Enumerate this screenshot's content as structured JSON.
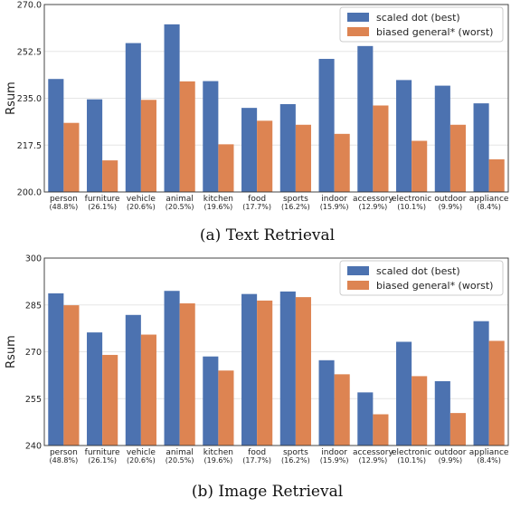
{
  "colors": {
    "best": "#4c72b0",
    "worst": "#dd8452"
  },
  "chart_data": [
    {
      "type": "bar",
      "caption": "(a) Text Retrieval",
      "ylabel": "Rsum",
      "ylim": [
        200.0,
        270.0
      ],
      "yticks": [
        "200.0",
        "217.5",
        "235.0",
        "252.5",
        "270.0"
      ],
      "ytick_values": [
        200.0,
        217.5,
        235.0,
        252.5,
        270.0
      ],
      "categories": [
        "person",
        "furniture",
        "vehicle",
        "animal",
        "kitchen",
        "food",
        "sports",
        "indoor",
        "accessory",
        "electronic",
        "outdoor",
        "appliance"
      ],
      "category_pcts": [
        "(48.8%)",
        "(26.1%)",
        "(20.6%)",
        "(20.5%)",
        "(19.6%)",
        "(17.7%)",
        "(16.2%)",
        "(15.9%)",
        "(12.9%)",
        "(10.1%)",
        "(9.9%)",
        "(8.4%)"
      ],
      "legend_position": "top-right",
      "series": [
        {
          "name": "scaled dot (best)",
          "color": "#4c72b0",
          "values": [
            242.2,
            234.6,
            255.6,
            262.6,
            241.4,
            231.4,
            232.8,
            249.7,
            254.5,
            241.8,
            239.7,
            233.1
          ]
        },
        {
          "name": "biased general* (worst)",
          "color": "#dd8452",
          "values": [
            225.8,
            211.8,
            234.4,
            241.3,
            217.8,
            226.6,
            225.1,
            221.7,
            232.3,
            219.1,
            225.1,
            212.2
          ]
        }
      ]
    },
    {
      "type": "bar",
      "caption": "(b) Image Retrieval",
      "ylabel": "Rsum",
      "ylim": [
        240,
        300
      ],
      "yticks": [
        "240",
        "255",
        "270",
        "285",
        "300"
      ],
      "ytick_values": [
        240,
        255,
        270,
        285,
        300
      ],
      "categories": [
        "person",
        "furniture",
        "vehicle",
        "animal",
        "kitchen",
        "food",
        "sports",
        "indoor",
        "accessory",
        "electronic",
        "outdoor",
        "appliance"
      ],
      "category_pcts": [
        "(48.8%)",
        "(26.1%)",
        "(20.6%)",
        "(20.5%)",
        "(19.6%)",
        "(17.7%)",
        "(16.2%)",
        "(15.9%)",
        "(12.9%)",
        "(10.1%)",
        "(9.9%)",
        "(8.4%)"
      ],
      "legend_position": "top-right",
      "series": [
        {
          "name": "scaled dot (best)",
          "color": "#4c72b0",
          "values": [
            288.7,
            276.2,
            281.8,
            289.5,
            268.5,
            288.5,
            289.3,
            267.3,
            257.0,
            273.2,
            260.6,
            279.8
          ]
        },
        {
          "name": "biased general* (worst)",
          "color": "#dd8452",
          "values": [
            284.9,
            269.0,
            275.5,
            285.5,
            264.0,
            286.4,
            287.5,
            262.8,
            250.0,
            262.2,
            250.4,
            273.5
          ]
        }
      ]
    }
  ]
}
